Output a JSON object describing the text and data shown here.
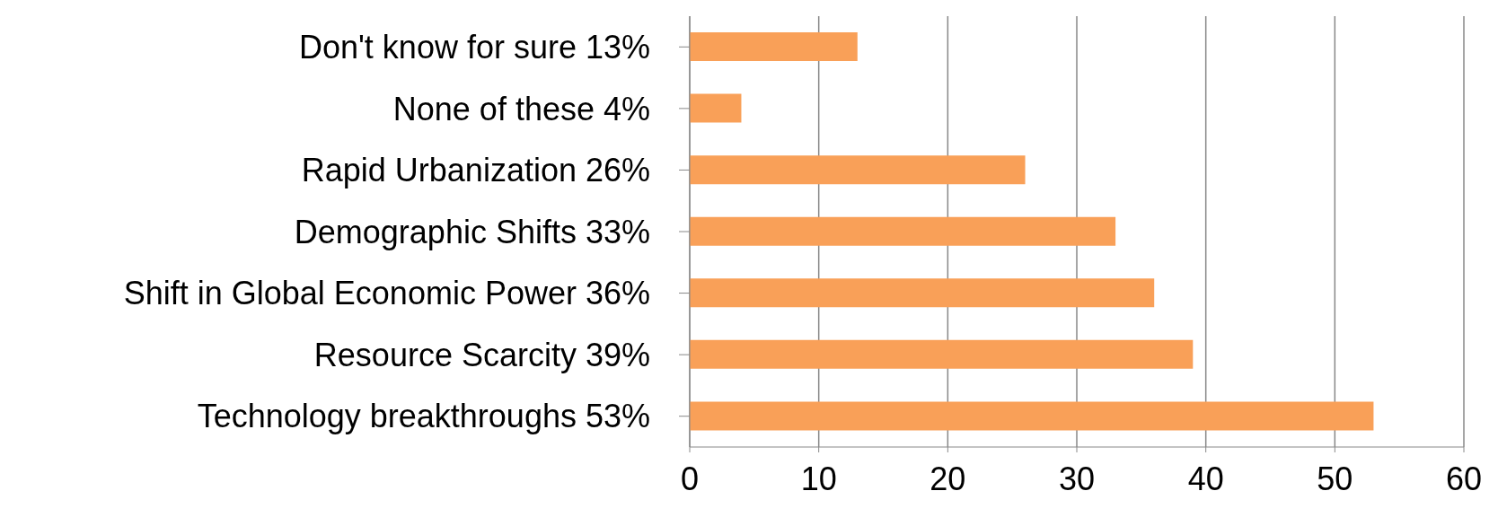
{
  "chart_data": {
    "type": "bar",
    "orientation": "horizontal",
    "categories": [
      "Don't know for sure 13%",
      "None of these 4%",
      "Rapid Urbanization 26%",
      "Demographic Shifts 33%",
      "Shift in Global Economic Power 36%",
      "Resource Scarcity 39%",
      "Technology breakthroughs 53%"
    ],
    "values": [
      13,
      4,
      26,
      33,
      36,
      39,
      53
    ],
    "color": "#f9a058",
    "xlim": [
      0,
      60
    ],
    "xticks": [
      0,
      10,
      20,
      30,
      40,
      50,
      60
    ],
    "grid": "x"
  }
}
